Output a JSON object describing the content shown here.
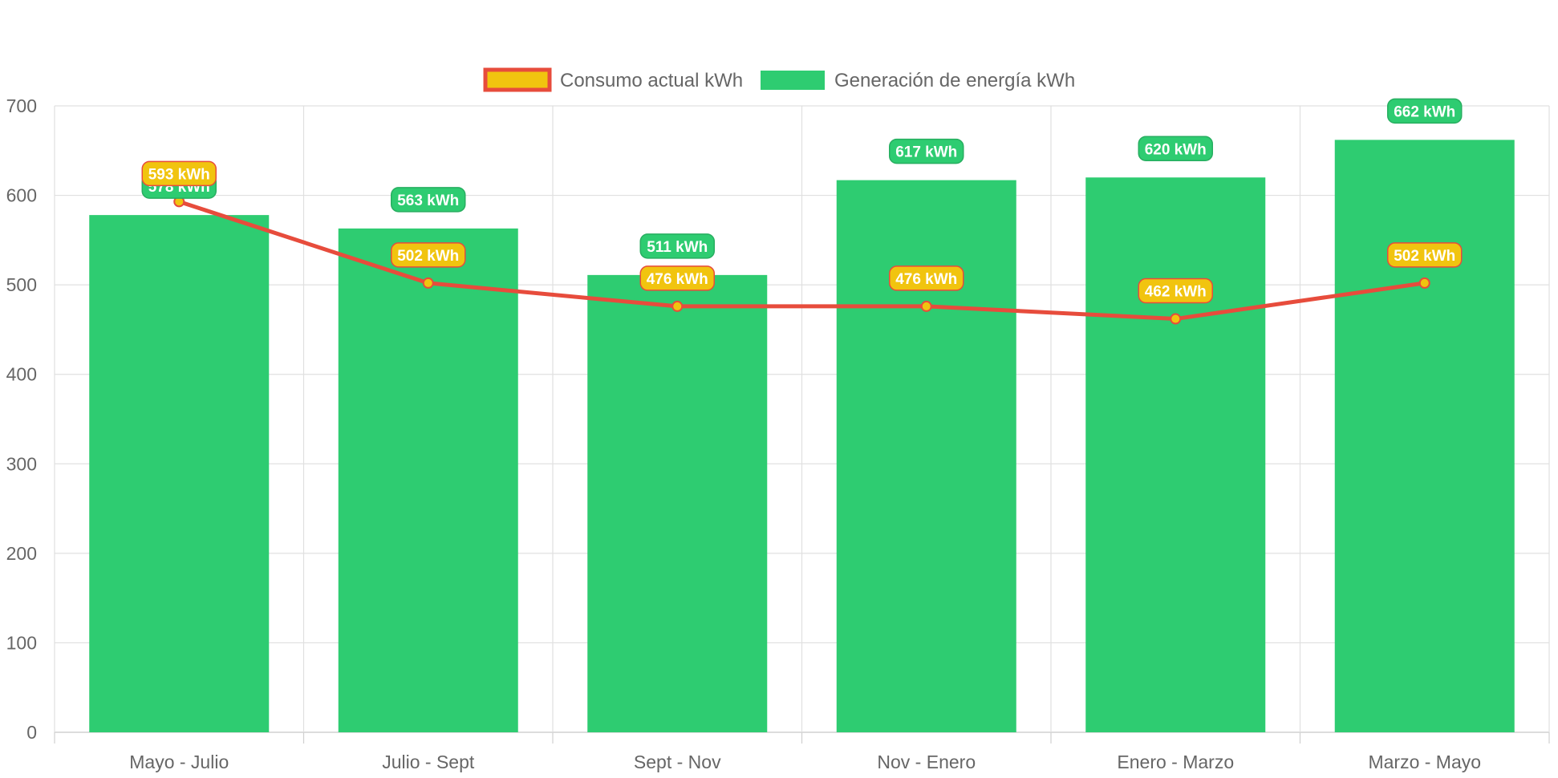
{
  "chart_data": {
    "type": "bar",
    "categories": [
      "Mayo - Julio",
      "Julio - Sept",
      "Sept - Nov",
      "Nov - Enero",
      "Enero - Marzo",
      "Marzo - Mayo"
    ],
    "series": [
      {
        "name": "Consumo actual kWh",
        "type": "line",
        "values": [
          593,
          502,
          476,
          476,
          462,
          502
        ],
        "labels": [
          "593 kWh",
          "502 kWh",
          "476 kWh",
          "476 kWh",
          "462 kWh",
          "502 kWh"
        ],
        "line_color": "#e74c3c",
        "fill_color": "#f1c40f"
      },
      {
        "name": "Generación de energía kWh",
        "type": "bar",
        "values": [
          578,
          563,
          511,
          617,
          620,
          662
        ],
        "labels": [
          "578 kWh",
          "563 kWh",
          "511 kWh",
          "617 kWh",
          "620 kWh",
          "662 kWh"
        ],
        "color": "#2ecc71"
      }
    ],
    "ylim": [
      0,
      700
    ],
    "yticks": [
      "0",
      "100",
      "200",
      "300",
      "400",
      "500",
      "600",
      "700"
    ],
    "grid": true,
    "legend_position": "top-center"
  }
}
